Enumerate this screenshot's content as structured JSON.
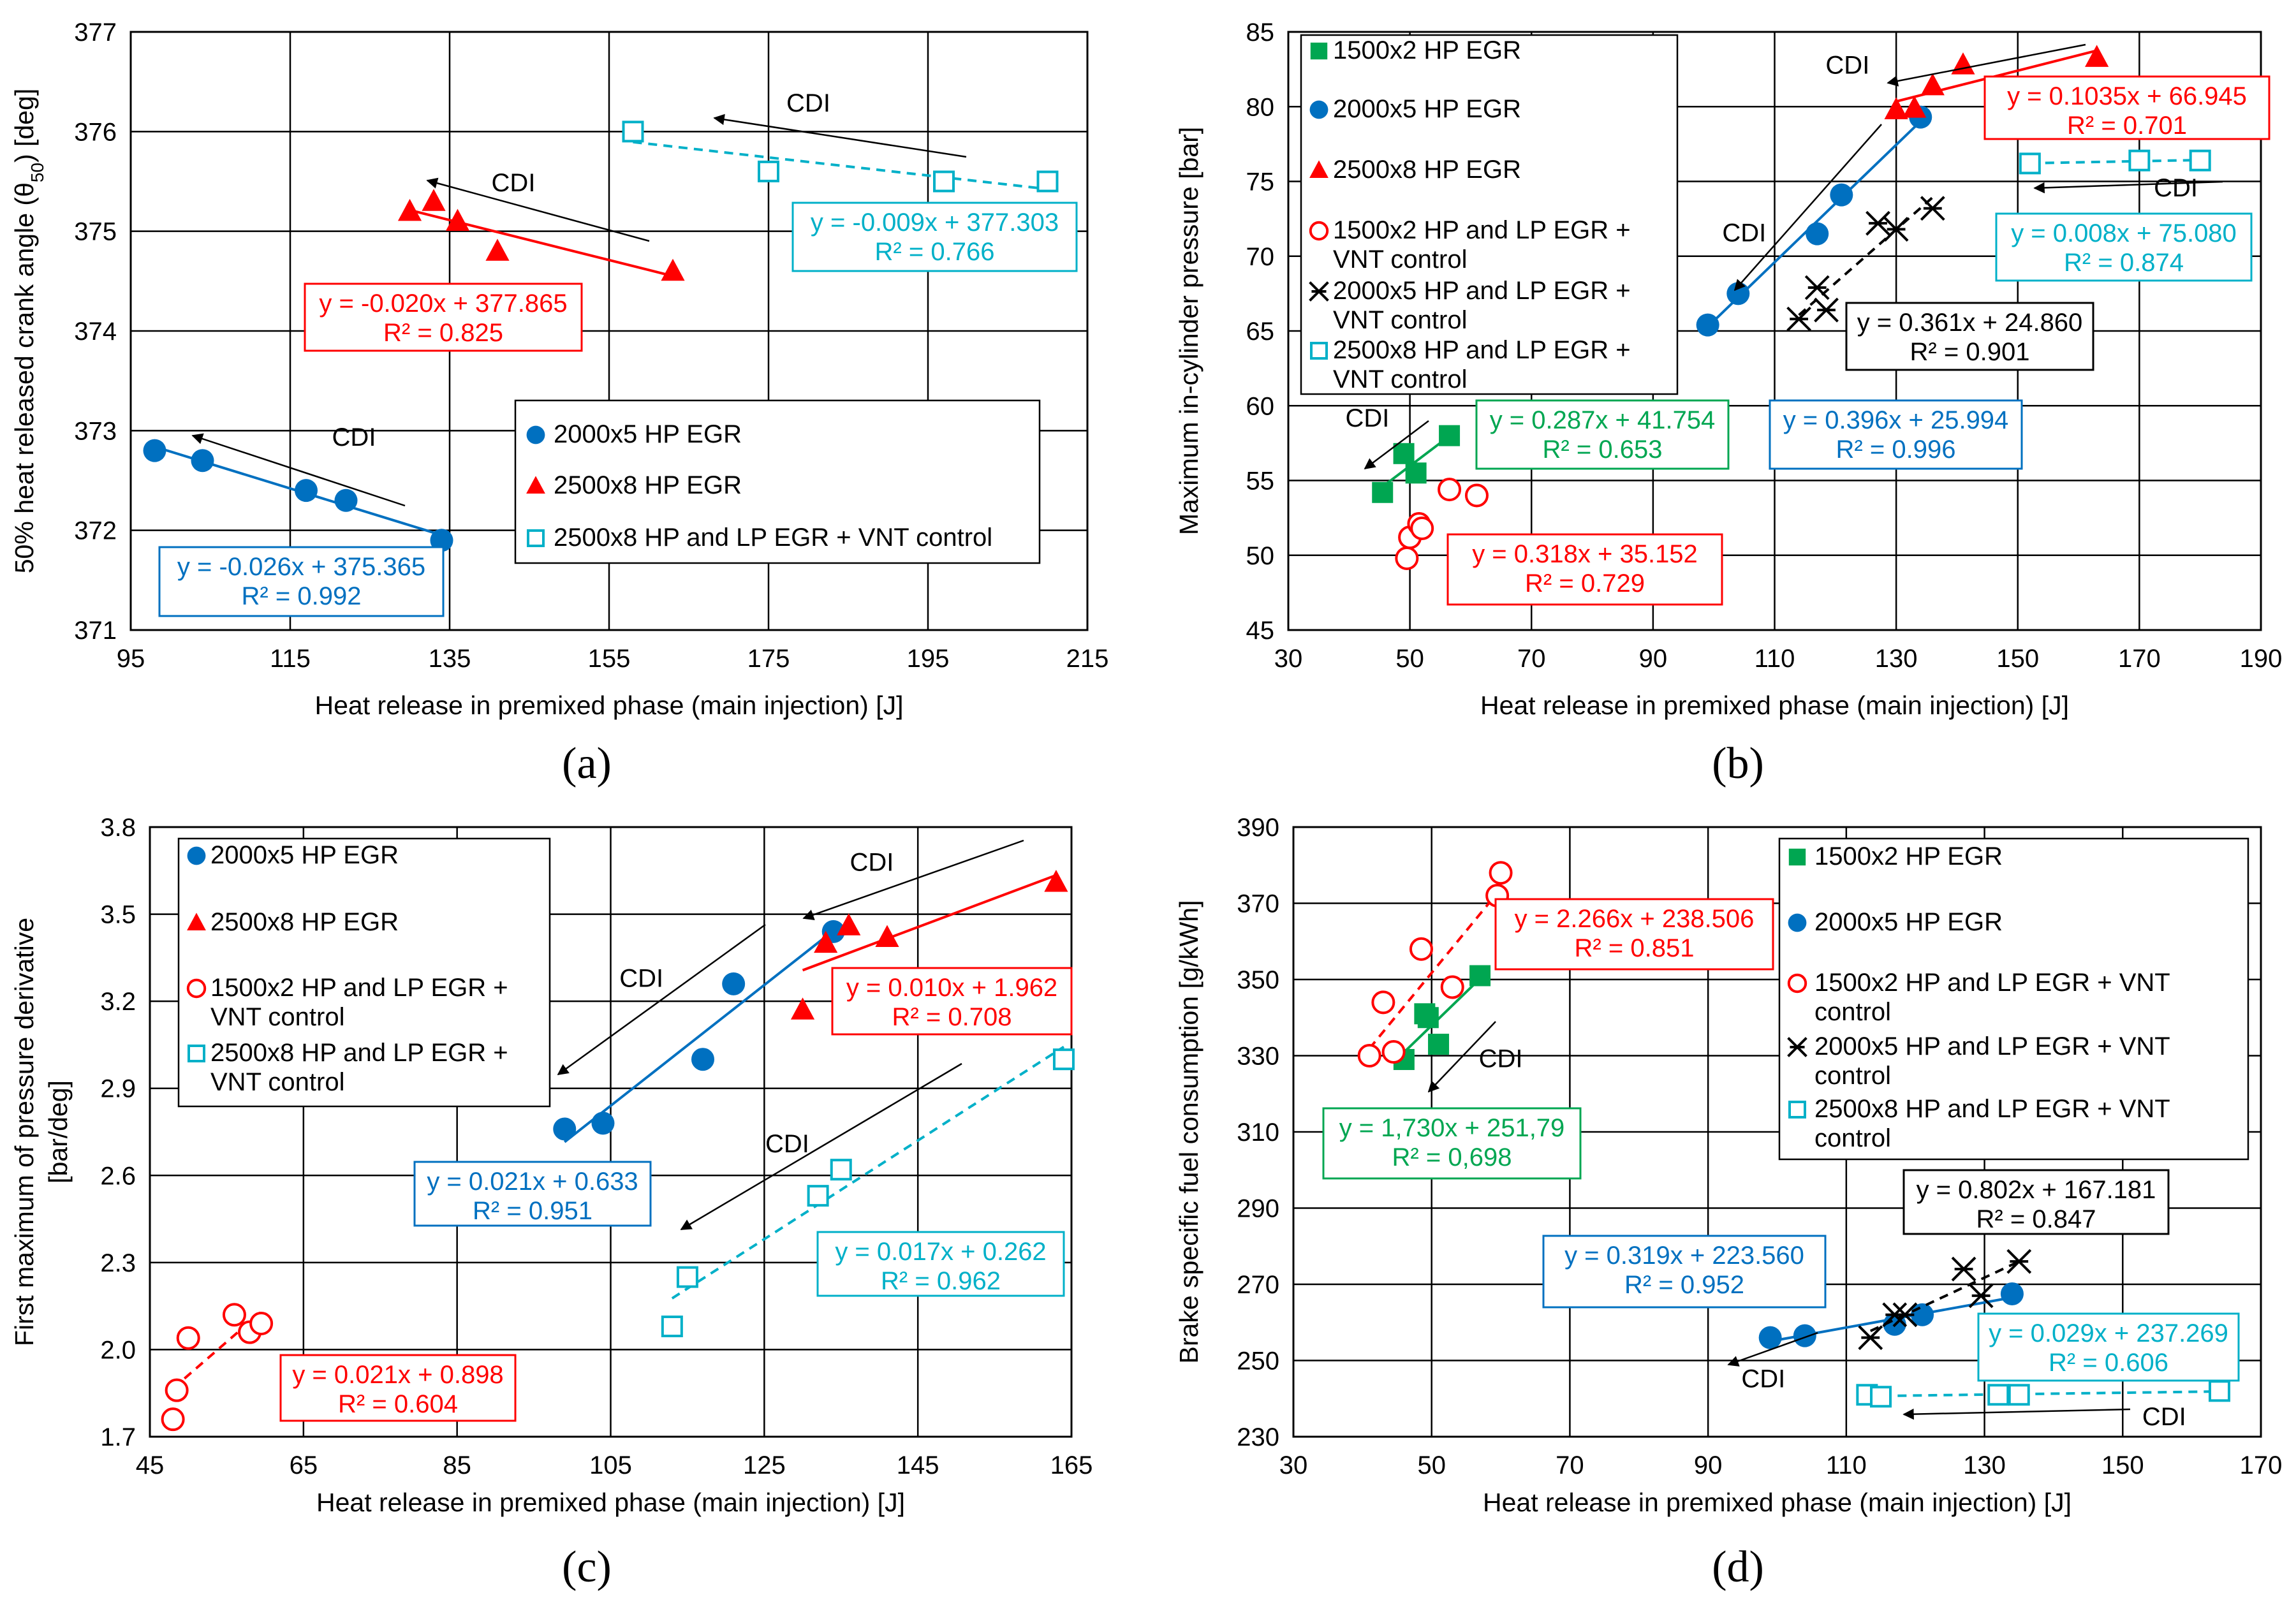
{
  "panel_labels": [
    "(a)",
    "(b)",
    "(c)",
    "(d)"
  ],
  "colors": {
    "green": "#00A651",
    "blue": "#0070C0",
    "red": "#FF0000",
    "black": "#000000",
    "cyan": "#00B0C8",
    "grid": "#000000"
  },
  "chart_data": [
    {
      "id": "a",
      "type": "scatter",
      "xlabel": "Heat release in premixed phase (main injection) [J]",
      "ylabel": "50% heat released crank angle (θ",
      "ylabel_sub": "50",
      "ylabel_end": ") [deg]",
      "xlim": [
        95,
        215
      ],
      "ylim": [
        371,
        377
      ],
      "xticks": [
        95,
        115,
        135,
        155,
        175,
        195,
        215
      ],
      "yticks": [
        371,
        372,
        373,
        374,
        375,
        376,
        377
      ],
      "legend": [
        "2000x5 HP EGR",
        "2500x8 HP EGR",
        "2500x8 HP and LP EGR + VNT control"
      ],
      "series": [
        {
          "name": "2000x5 HP EGR",
          "marker": "circle",
          "color": "blue",
          "x": [
            98,
            104,
            117,
            122,
            134
          ],
          "y": [
            372.8,
            372.7,
            372.4,
            372.3,
            371.9
          ],
          "fit": {
            "x": [
              98,
              134
            ],
            "dash": false
          }
        },
        {
          "name": "2500x8 HP EGR",
          "marker": "triangle",
          "color": "red",
          "x": [
            130,
            133,
            136,
            141,
            163
          ],
          "y": [
            375.2,
            375.3,
            375.1,
            374.8,
            374.6
          ],
          "fit": {
            "x": [
              130,
              163
            ],
            "dash": false
          }
        },
        {
          "name": "2500x8 HP and LP EGR + VNT control",
          "marker": "square-open",
          "color": "cyan",
          "x": [
            158,
            175,
            197,
            210
          ],
          "y": [
            376.0,
            375.6,
            375.5,
            375.5
          ],
          "fit": {
            "x": [
              158,
              210
            ],
            "dash": true
          }
        }
      ],
      "equations": [
        {
          "series": 0,
          "text": "y = -0.026x + 375.365",
          "r2": "R² = 0.992"
        },
        {
          "series": 1,
          "text": "y = -0.020x + 377.865",
          "r2": "R² = 0.825"
        },
        {
          "series": 2,
          "text": "y = -0.009x + 377.303",
          "r2": "R² = 0.766"
        }
      ],
      "annotations": [
        {
          "text": "CDI",
          "x": 123,
          "y": 372.85
        },
        {
          "text": "CDI",
          "x": 143,
          "y": 375.4
        },
        {
          "text": "CDI",
          "x": 180,
          "y": 376.2
        }
      ]
    },
    {
      "id": "b",
      "type": "scatter",
      "xlabel": "Heat release in premixed phase (main injection) [J]",
      "ylabel": "Maximum in-cylinder pressure [bar]",
      "xlim": [
        30,
        190
      ],
      "ylim": [
        45,
        85
      ],
      "xticks": [
        30,
        50,
        70,
        90,
        110,
        130,
        150,
        170,
        190
      ],
      "yticks": [
        45,
        50,
        55,
        60,
        65,
        70,
        75,
        80,
        85
      ],
      "legend": [
        "1500x2 HP EGR",
        "2000x5 HP EGR",
        "2500x8 HP EGR",
        "1500x2 HP and LP EGR + VNT control",
        "2000x5 HP and LP EGR + VNT control",
        "2500x8 HP and LP EGR + VNT control"
      ],
      "series": [
        {
          "name": "1500x2 HP EGR",
          "marker": "square",
          "color": "green",
          "x": [
            45.5,
            49,
            51,
            56.5
          ],
          "y": [
            54.2,
            56.8,
            55.5,
            58.0
          ],
          "fit": {
            "x": [
              45.5,
              56.5
            ],
            "dash": false
          }
        },
        {
          "name": "2000x5 HP EGR",
          "marker": "circle",
          "color": "blue",
          "x": [
            99,
            104,
            117,
            121,
            134
          ],
          "y": [
            65.4,
            67.5,
            71.5,
            74.1,
            79.3
          ],
          "fit": {
            "x": [
              99,
              134
            ],
            "dash": false
          }
        },
        {
          "name": "2500x8 HP EGR",
          "marker": "triangle",
          "color": "red",
          "x": [
            130,
            133,
            136,
            141,
            163
          ],
          "y": [
            79.8,
            79.9,
            81.4,
            82.8,
            83.3
          ],
          "fit": {
            "x": [
              130,
              163
            ],
            "dash": false
          }
        },
        {
          "name": "1500x2 HP and LP EGR + VNT control",
          "marker": "circle-open",
          "color": "red",
          "x": [
            49.5,
            50,
            51.5,
            52,
            56.5,
            61
          ],
          "y": [
            49.8,
            51.2,
            52.1,
            51.8,
            54.4,
            54.0
          ],
          "fit": null
        },
        {
          "name": "2000x5 HP and LP EGR + VNT control",
          "marker": "star",
          "color": "black",
          "x": [
            114,
            117,
            118.5,
            127,
            130,
            136
          ],
          "y": [
            65.8,
            67.9,
            66.4,
            72.2,
            71.8,
            73.2
          ],
          "fit": {
            "x": [
              114,
              136
            ],
            "dash": true
          }
        },
        {
          "name": "2500x8 HP and LP EGR + VNT control",
          "marker": "square-open",
          "color": "cyan",
          "x": [
            152,
            170,
            180
          ],
          "y": [
            76.2,
            76.4,
            76.4
          ],
          "fit": {
            "x": [
              152,
              180
            ],
            "dash": true
          }
        }
      ],
      "equations": [
        {
          "series": 0,
          "text": "y = 0.287x + 41.754",
          "r2": "R² = 0.653"
        },
        {
          "series": 1,
          "text": "y = 0.396x + 25.994",
          "r2": "R² = 0.996"
        },
        {
          "series": 2,
          "text": "y = 0.1035x + 66.945",
          "r2": "R² = 0.701"
        },
        {
          "series": 3,
          "text": "y = 0.318x + 35.152",
          "r2": "R² = 0.729"
        },
        {
          "series": 4,
          "text": "y = 0.361x + 24.860",
          "r2": "R² = 0.901"
        },
        {
          "series": 5,
          "text": "y = 0.008x + 75.080",
          "r2": "R² = 0.874"
        }
      ],
      "annotations": [
        {
          "text": "CDI",
          "x": 43,
          "y": 58.6
        },
        {
          "text": "CDI",
          "x": 105,
          "y": 71.0
        },
        {
          "text": "CDI",
          "x": 122,
          "y": 82.2
        },
        {
          "text": "CDI",
          "x": 176,
          "y": 74.0
        }
      ]
    },
    {
      "id": "c",
      "type": "scatter",
      "xlabel": "Heat release in premixed phase (main injection) [J]",
      "ylabel": "First maximum of pressure derivative",
      "ylabel2": "[bar/deg]",
      "xlim": [
        45,
        165
      ],
      "ylim": [
        1.7,
        3.8
      ],
      "xticks": [
        45,
        65,
        85,
        105,
        125,
        145,
        165
      ],
      "yticks": [
        1.7,
        2.0,
        2.3,
        2.6,
        2.9,
        3.2,
        3.5,
        3.8
      ],
      "legend": [
        "2000x5 HP EGR",
        "2500x8 HP EGR",
        "1500x2 HP and LP EGR + VNT control",
        "2500x8 HP and LP EGR + VNT control"
      ],
      "series": [
        {
          "name": "2000x5 HP EGR",
          "marker": "circle",
          "color": "blue",
          "x": [
            99,
            104,
            117,
            121,
            134
          ],
          "y": [
            2.76,
            2.78,
            3.0,
            3.26,
            3.44
          ],
          "fit": {
            "x": [
              99,
              134
            ],
            "dash": false
          }
        },
        {
          "name": "2500x8 HP EGR",
          "marker": "triangle",
          "color": "red",
          "x": [
            130,
            133,
            136,
            141,
            163
          ],
          "y": [
            3.17,
            3.4,
            3.46,
            3.42,
            3.61
          ],
          "fit": {
            "x": [
              130,
              163
            ],
            "dash": false
          }
        },
        {
          "name": "1500x2 HP and LP EGR + VNT control",
          "marker": "circle-open",
          "color": "red",
          "x": [
            48,
            48.5,
            50,
            56,
            58,
            59.5
          ],
          "y": [
            1.76,
            1.86,
            2.04,
            2.12,
            2.06,
            2.09
          ],
          "fit": {
            "x": [
              48,
              59.5
            ],
            "dash": true
          }
        },
        {
          "name": "2500x8 HP and LP EGR + VNT control",
          "marker": "square-open",
          "color": "cyan",
          "x": [
            113,
            115,
            132,
            135,
            164
          ],
          "y": [
            2.08,
            2.25,
            2.53,
            2.62,
            3.0
          ],
          "fit": {
            "x": [
              113,
              164
            ],
            "dash": true
          }
        }
      ],
      "equations": [
        {
          "series": 0,
          "text": "y = 0.021x + 0.633",
          "r2": "R² = 0.951"
        },
        {
          "series": 1,
          "text": "y = 0.010x + 1.962",
          "r2": "R² = 0.708"
        },
        {
          "series": 2,
          "text": "y = 0.021x + 0.898",
          "r2": "R² = 0.604"
        },
        {
          "series": 3,
          "text": "y = 0.017x + 0.262",
          "r2": "R² = 0.962"
        }
      ],
      "annotations": [
        {
          "text": "CDI",
          "x": 109,
          "y": 3.25
        },
        {
          "text": "CDI",
          "x": 139,
          "y": 3.65
        },
        {
          "text": "CDI",
          "x": 128,
          "y": 2.68
        }
      ]
    },
    {
      "id": "d",
      "type": "scatter",
      "xlabel": "Heat release in premixed phase (main injection) [J]",
      "ylabel": "Brake specific fuel consumption [g/kWh]",
      "xlim": [
        30,
        170
      ],
      "ylim": [
        230,
        390
      ],
      "xticks": [
        30,
        50,
        70,
        90,
        110,
        130,
        150,
        170
      ],
      "yticks": [
        230,
        250,
        270,
        290,
        310,
        330,
        350,
        370,
        390
      ],
      "legend": [
        "1500x2 HP EGR",
        "2000x5 HP EGR",
        "1500x2 HP and LP EGR + VNT control",
        "2000x5 HP and LP EGR + VNT control",
        "2500x8 HP and LP EGR + VNT control"
      ],
      "series": [
        {
          "name": "1500x2 HP EGR",
          "marker": "square",
          "color": "green",
          "x": [
            46,
            49,
            49.5,
            51,
            57
          ],
          "y": [
            329,
            341,
            340,
            333,
            351
          ],
          "fit": {
            "x": [
              46,
              57
            ],
            "dash": false
          }
        },
        {
          "name": "2000x5 HP EGR",
          "marker": "circle",
          "color": "blue",
          "x": [
            99,
            104,
            117,
            121,
            134
          ],
          "y": [
            256,
            256.5,
            259.5,
            262,
            267.5
          ],
          "fit": {
            "x": [
              99,
              134
            ],
            "dash": false
          }
        },
        {
          "name": "1500x2 HP and LP EGR + VNT control",
          "marker": "circle-open",
          "color": "red",
          "x": [
            41,
            43,
            44.5,
            48.5,
            53,
            59.5,
            60
          ],
          "y": [
            330,
            344,
            331,
            358,
            348,
            372,
            378
          ],
          "fit": {
            "x": [
              41,
              60
            ],
            "dash": true
          }
        },
        {
          "name": "2000x5 HP and LP EGR + VNT control",
          "marker": "star",
          "color": "black",
          "x": [
            113.5,
            117,
            118.5,
            127,
            129.5,
            135
          ],
          "y": [
            256,
            262,
            262,
            274,
            267,
            276
          ],
          "fit": {
            "x": [
              113.5,
              135
            ],
            "dash": true
          }
        },
        {
          "name": "2500x8 HP and LP EGR + VNT control",
          "marker": "square-open",
          "color": "cyan",
          "x": [
            113,
            115,
            132,
            135,
            164
          ],
          "y": [
            241,
            240.5,
            241,
            241,
            242
          ],
          "fit": {
            "x": [
              113,
              164
            ],
            "dash": true
          }
        }
      ],
      "equations": [
        {
          "series": 0,
          "text": "y = 1,730x + 251,79",
          "r2": "R² = 0,698"
        },
        {
          "series": 1,
          "text": "y = 0.319x + 223.560",
          "r2": "R² = 0.952"
        },
        {
          "series": 2,
          "text": "y = 2.266x + 238.506",
          "r2": "R² = 0.851"
        },
        {
          "series": 3,
          "text": "y = 0.802x + 167.181",
          "r2": "R² = 0.847"
        },
        {
          "series": 4,
          "text": "y = 0.029x + 237.269",
          "r2": "R² = 0.606"
        }
      ],
      "annotations": [
        {
          "text": "CDI",
          "x": 60,
          "y": 327
        },
        {
          "text": "CDI",
          "x": 98,
          "y": 243
        },
        {
          "text": "CDI",
          "x": 156,
          "y": 233
        }
      ]
    }
  ]
}
